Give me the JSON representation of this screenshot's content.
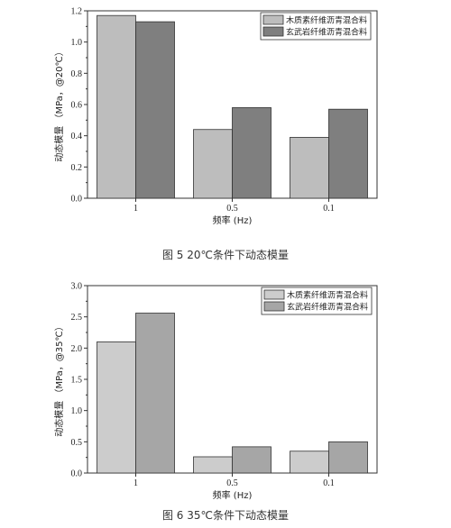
{
  "chart_data": [
    {
      "type": "bar",
      "categories": [
        "1",
        "0.5",
        "0.1"
      ],
      "series": [
        {
          "name": "木质素纤维沥青混合料",
          "values": [
            1.17,
            0.44,
            0.39
          ],
          "color": "#bdbdbd"
        },
        {
          "name": "玄武岩纤维沥青混合料",
          "values": [
            1.13,
            0.58,
            0.57
          ],
          "color": "#7f7f7f"
        }
      ],
      "xlabel": "频率 (Hz)",
      "ylabel": "动态模量 （MPa，@20℃）",
      "ylim": [
        0,
        1.2
      ],
      "yticks": [
        "0.0",
        "0.2",
        "0.4",
        "0.6",
        "0.8",
        "1.0",
        "1.2"
      ],
      "legend": "top-right",
      "grid": false,
      "caption": "图 5  20℃条件下动态模量"
    },
    {
      "type": "bar",
      "categories": [
        "1",
        "0.5",
        "0.1"
      ],
      "series": [
        {
          "name": "木质素纤维沥青混合料",
          "values": [
            2.1,
            0.26,
            0.35
          ],
          "color": "#cccccc"
        },
        {
          "name": "玄武岩纤维沥青混合料",
          "values": [
            2.56,
            0.42,
            0.5
          ],
          "color": "#a6a6a6"
        }
      ],
      "xlabel": "频率 (Hz)",
      "ylabel": "动态模量 （MPa，@35℃）",
      "ylim": [
        0,
        3.0
      ],
      "yticks": [
        "0.0",
        "0.5",
        "1.0",
        "1.5",
        "2.0",
        "2.5",
        "3.0"
      ],
      "legend": "top-right",
      "grid": false,
      "caption": "图 6  35℃条件下动态模量"
    }
  ]
}
